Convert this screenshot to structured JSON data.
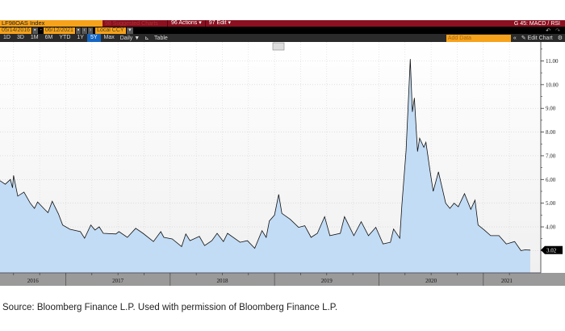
{
  "header": {
    "ticker": "LF98OAS Index",
    "suggested": "98 Suggested Charts",
    "actions": "96 Actions ▾",
    "edit": "97 Edit ▾",
    "template": "G 45: MACD / RSI"
  },
  "controls": {
    "start_date": "05/14/2016",
    "end_date": "06/12/2021",
    "currency": "Local CCY",
    "undo": "↶",
    "redo": "↷"
  },
  "ranges": [
    "1D",
    "3D",
    "1M",
    "6M",
    "YTD",
    "1Y",
    "5Y",
    "Max"
  ],
  "active_range": "5Y",
  "frequency": "Daily ▼",
  "table_label": "Table",
  "add_data": "Add Data",
  "edit_chart": "✎ Edit Chart",
  "collapse": "«",
  "colors": {
    "line": "#111111",
    "fill": "#c3dcf5",
    "accent": "#f7a21b",
    "header": "#8b1020"
  },
  "chart_data": {
    "type": "area",
    "title": "LF98OAS Index",
    "xlabel": "",
    "ylabel": "",
    "ylim": [
      2.06,
      11.8
    ],
    "xlim": [
      2016.37,
      2021.45
    ],
    "y_ticks": [
      "3.00",
      "4.00",
      "5.00",
      "6.00",
      "7.00",
      "8.00",
      "9.00",
      "10.00",
      "11.00"
    ],
    "x_labels": [
      "2016",
      "2017",
      "2018",
      "2019",
      "2020",
      "2021"
    ],
    "last_value": "3.02",
    "grid": true,
    "x": [
      2016.37,
      2016.42,
      2016.47,
      2016.49,
      2016.5,
      2016.54,
      2016.6,
      2016.66,
      2016.7,
      2016.73,
      2016.8,
      2016.83,
      2016.87,
      2016.93,
      2016.97,
      2017.04,
      2017.14,
      2017.18,
      2017.24,
      2017.28,
      2017.32,
      2017.36,
      2017.48,
      2017.51,
      2017.59,
      2017.67,
      2017.74,
      2017.84,
      2017.91,
      2017.94,
      2018.02,
      2018.11,
      2018.15,
      2018.19,
      2018.28,
      2018.33,
      2018.4,
      2018.45,
      2018.51,
      2018.55,
      2018.67,
      2018.74,
      2018.81,
      2018.88,
      2018.92,
      2018.95,
      2019.0,
      2019.04,
      2019.07,
      2019.15,
      2019.23,
      2019.29,
      2019.35,
      2019.41,
      2019.48,
      2019.53,
      2019.63,
      2019.67,
      2019.76,
      2019.83,
      2019.9,
      2019.97,
      2020.04,
      2020.11,
      2020.14,
      2020.2,
      2020.22,
      2020.26,
      2020.3,
      2020.32,
      2020.34,
      2020.37,
      2020.39,
      2020.43,
      2020.45,
      2020.49,
      2020.52,
      2020.57,
      2020.64,
      2020.68,
      2020.72,
      2020.76,
      2020.82,
      2020.88,
      2020.92,
      2020.95,
      2021.01,
      2021.07,
      2021.15,
      2021.22,
      2021.3,
      2021.36,
      2021.4,
      2021.45
    ],
    "y": [
      5.95,
      5.8,
      6.0,
      5.65,
      6.17,
      5.3,
      5.47,
      5.0,
      4.78,
      5.05,
      4.73,
      4.6,
      5.08,
      4.55,
      4.08,
      3.9,
      3.8,
      3.52,
      4.08,
      3.87,
      4.0,
      3.73,
      3.7,
      3.8,
      3.56,
      3.94,
      3.73,
      3.38,
      3.8,
      3.56,
      3.49,
      3.17,
      3.7,
      3.42,
      3.6,
      3.21,
      3.42,
      3.73,
      3.38,
      3.73,
      3.35,
      3.42,
      3.1,
      3.84,
      3.56,
      4.25,
      4.5,
      5.37,
      4.57,
      4.32,
      3.98,
      4.05,
      3.56,
      3.73,
      4.43,
      3.63,
      3.73,
      4.43,
      3.63,
      4.22,
      3.63,
      3.98,
      3.28,
      3.35,
      3.91,
      3.52,
      4.92,
      7.22,
      11.08,
      8.85,
      9.44,
      7.18,
      7.74,
      7.36,
      7.57,
      6.36,
      5.5,
      6.32,
      5.0,
      4.78,
      5.0,
      4.85,
      5.4,
      4.74,
      5.13,
      4.08,
      3.87,
      3.63,
      3.63,
      3.28,
      3.38,
      3.0,
      3.03,
      3.02
    ]
  },
  "source": "Source: Bloomberg Finance L.P. Used with permission of Bloomberg Finance L.P."
}
